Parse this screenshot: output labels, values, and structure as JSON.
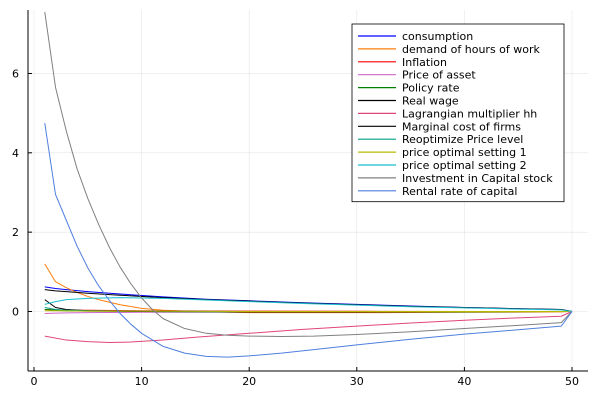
{
  "chart_data": {
    "type": "line",
    "title": "",
    "xlabel": "",
    "ylabel": "",
    "xlim": [
      0,
      50
    ],
    "ylim": [
      -1.5,
      7.6
    ],
    "x_ticks": [
      0,
      10,
      20,
      30,
      40,
      50
    ],
    "y_ticks": [
      0,
      2,
      4,
      6
    ],
    "grid": true,
    "legend_position": "top-right",
    "series": [
      {
        "name": "consumption",
        "color": "#0000ff",
        "points": [
          [
            1,
            0.62
          ],
          [
            2,
            0.58
          ],
          [
            3,
            0.55
          ],
          [
            5,
            0.5
          ],
          [
            8,
            0.44
          ],
          [
            12,
            0.37
          ],
          [
            16,
            0.31
          ],
          [
            20,
            0.27
          ],
          [
            25,
            0.22
          ],
          [
            30,
            0.18
          ],
          [
            35,
            0.14
          ],
          [
            40,
            0.1
          ],
          [
            45,
            0.07
          ],
          [
            49,
            0.05
          ],
          [
            50,
            0.0
          ]
        ]
      },
      {
        "name": "demand of hours of work",
        "color": "#ff7f0e",
        "points": [
          [
            1,
            1.2
          ],
          [
            2,
            0.75
          ],
          [
            3,
            0.6
          ],
          [
            4,
            0.48
          ],
          [
            5,
            0.38
          ],
          [
            6,
            0.3
          ],
          [
            8,
            0.17
          ],
          [
            10,
            0.08
          ],
          [
            12,
            0.03
          ],
          [
            15,
            0.0
          ],
          [
            20,
            -0.03
          ],
          [
            30,
            -0.03
          ],
          [
            40,
            -0.02
          ],
          [
            49,
            -0.01
          ],
          [
            50,
            0.0
          ]
        ]
      },
      {
        "name": "Inflation",
        "color": "#ff0000",
        "points": [
          [
            1,
            0.05
          ],
          [
            2,
            0.04
          ],
          [
            3,
            0.035
          ],
          [
            5,
            0.03
          ],
          [
            10,
            0.02
          ],
          [
            20,
            0.01
          ],
          [
            30,
            0.005
          ],
          [
            40,
            0.0
          ],
          [
            49,
            0.0
          ],
          [
            50,
            0.0
          ]
        ]
      },
      {
        "name": "Price of asset",
        "color": "#cc66cc",
        "points": [
          [
            1,
            -0.05
          ],
          [
            2,
            -0.04
          ],
          [
            3,
            -0.035
          ],
          [
            5,
            -0.03
          ],
          [
            10,
            -0.02
          ],
          [
            20,
            -0.01
          ],
          [
            30,
            -0.005
          ],
          [
            40,
            0.0
          ],
          [
            49,
            0.0
          ],
          [
            50,
            0.0
          ]
        ]
      },
      {
        "name": "Policy rate",
        "color": "#008000",
        "points": [
          [
            1,
            0.05
          ],
          [
            2,
            0.03
          ],
          [
            3,
            0.02
          ],
          [
            5,
            0.01
          ],
          [
            10,
            0.0
          ],
          [
            20,
            -0.01
          ],
          [
            30,
            -0.01
          ],
          [
            40,
            -0.01
          ],
          [
            49,
            0.0
          ],
          [
            50,
            0.0
          ]
        ]
      },
      {
        "name": "Real wage",
        "color": "#000000",
        "points": [
          [
            1,
            0.55
          ],
          [
            2,
            0.52
          ],
          [
            3,
            0.5
          ],
          [
            5,
            0.46
          ],
          [
            8,
            0.41
          ],
          [
            12,
            0.35
          ],
          [
            16,
            0.3
          ],
          [
            20,
            0.26
          ],
          [
            25,
            0.21
          ],
          [
            30,
            0.17
          ],
          [
            35,
            0.13
          ],
          [
            40,
            0.1
          ],
          [
            45,
            0.07
          ],
          [
            49,
            0.05
          ],
          [
            50,
            0.0
          ]
        ]
      },
      {
        "name": "Lagrangian multiplier hh",
        "color": "#e0457b",
        "points": [
          [
            1,
            -0.62
          ],
          [
            3,
            -0.72
          ],
          [
            5,
            -0.76
          ],
          [
            7,
            -0.78
          ],
          [
            9,
            -0.77
          ],
          [
            12,
            -0.72
          ],
          [
            15,
            -0.65
          ],
          [
            20,
            -0.55
          ],
          [
            25,
            -0.45
          ],
          [
            30,
            -0.37
          ],
          [
            35,
            -0.29
          ],
          [
            40,
            -0.22
          ],
          [
            45,
            -0.16
          ],
          [
            49,
            -0.12
          ],
          [
            50,
            0.0
          ]
        ]
      },
      {
        "name": "Marginal cost of firms",
        "color": "#000000",
        "points": [
          [
            1,
            0.3
          ],
          [
            2,
            0.1
          ],
          [
            3,
            0.05
          ],
          [
            5,
            0.02
          ],
          [
            10,
            0.0
          ],
          [
            20,
            -0.01
          ],
          [
            30,
            -0.01
          ],
          [
            40,
            0.0
          ],
          [
            49,
            0.0
          ],
          [
            50,
            0.0
          ]
        ]
      },
      {
        "name": "Reoptimize Price level",
        "color": "#00a087",
        "points": [
          [
            1,
            0.1
          ],
          [
            2,
            0.05
          ],
          [
            3,
            0.03
          ],
          [
            5,
            0.02
          ],
          [
            10,
            0.01
          ],
          [
            20,
            0.0
          ],
          [
            30,
            0.0
          ],
          [
            40,
            0.0
          ],
          [
            49,
            0.0
          ],
          [
            50,
            0.0
          ]
        ]
      },
      {
        "name": "price optimal setting 1",
        "color": "#b8b800",
        "points": [
          [
            1,
            0.02
          ],
          [
            2,
            0.02
          ],
          [
            5,
            0.01
          ],
          [
            10,
            0.01
          ],
          [
            20,
            0.0
          ],
          [
            30,
            0.0
          ],
          [
            40,
            0.0
          ],
          [
            49,
            0.0
          ],
          [
            50,
            0.0
          ]
        ]
      },
      {
        "name": "price optimal setting 2",
        "color": "#17becf",
        "points": [
          [
            1,
            0.18
          ],
          [
            2,
            0.25
          ],
          [
            3,
            0.3
          ],
          [
            5,
            0.33
          ],
          [
            8,
            0.35
          ],
          [
            12,
            0.33
          ],
          [
            16,
            0.29
          ],
          [
            20,
            0.25
          ],
          [
            25,
            0.2
          ],
          [
            30,
            0.16
          ],
          [
            35,
            0.12
          ],
          [
            40,
            0.09
          ],
          [
            45,
            0.06
          ],
          [
            49,
            0.04
          ],
          [
            50,
            0.0
          ]
        ]
      },
      {
        "name": "Investment in Capital stock",
        "color": "#808080",
        "points": [
          [
            1,
            7.55
          ],
          [
            2,
            5.65
          ],
          [
            3,
            4.55
          ],
          [
            4,
            3.6
          ],
          [
            5,
            2.85
          ],
          [
            6,
            2.2
          ],
          [
            7,
            1.62
          ],
          [
            8,
            1.12
          ],
          [
            9,
            0.7
          ],
          [
            10,
            0.34
          ],
          [
            11,
            0.05
          ],
          [
            12,
            -0.18
          ],
          [
            14,
            -0.43
          ],
          [
            16,
            -0.55
          ],
          [
            18,
            -0.6
          ],
          [
            20,
            -0.62
          ],
          [
            23,
            -0.63
          ],
          [
            26,
            -0.62
          ],
          [
            30,
            -0.58
          ],
          [
            35,
            -0.51
          ],
          [
            40,
            -0.43
          ],
          [
            45,
            -0.35
          ],
          [
            49,
            -0.28
          ],
          [
            50,
            0.0
          ]
        ]
      },
      {
        "name": "Rental rate of capital",
        "color": "#4f7fdf",
        "points": [
          [
            1,
            4.75
          ],
          [
            2,
            2.95
          ],
          [
            3,
            2.3
          ],
          [
            4,
            1.65
          ],
          [
            5,
            1.1
          ],
          [
            6,
            0.65
          ],
          [
            7,
            0.28
          ],
          [
            8,
            -0.05
          ],
          [
            9,
            -0.32
          ],
          [
            10,
            -0.55
          ],
          [
            12,
            -0.88
          ],
          [
            14,
            -1.05
          ],
          [
            16,
            -1.13
          ],
          [
            18,
            -1.15
          ],
          [
            20,
            -1.12
          ],
          [
            23,
            -1.05
          ],
          [
            26,
            -0.96
          ],
          [
            30,
            -0.84
          ],
          [
            35,
            -0.7
          ],
          [
            40,
            -0.57
          ],
          [
            45,
            -0.46
          ],
          [
            49,
            -0.37
          ],
          [
            50,
            0.0
          ]
        ]
      }
    ]
  }
}
